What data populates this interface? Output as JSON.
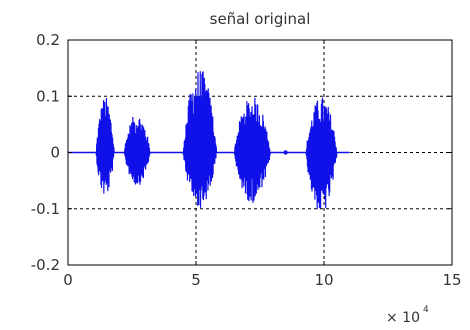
{
  "chart_data": {
    "type": "line",
    "title": "señal original",
    "xlabel": "",
    "ylabel": "",
    "xlim": [
      0,
      15
    ],
    "ylim": [
      -0.2,
      0.2
    ],
    "x_ticks": [
      "0",
      "5",
      "10",
      "15"
    ],
    "y_ticks": [
      "0.2",
      "0.1",
      "0",
      "-0.1",
      "-0.2"
    ],
    "x_exponent": {
      "base": "× 10",
      "power": "4"
    },
    "grid": true,
    "series_color": "#1010e8",
    "bursts": [
      {
        "start": 1.1,
        "end": 1.8,
        "peak_pos": 0.1,
        "peak_neg": -0.08
      },
      {
        "start": 2.2,
        "end": 3.2,
        "peak_pos": 0.07,
        "peak_neg": -0.06
      },
      {
        "start": 4.5,
        "end": 5.8,
        "peak_pos": 0.15,
        "peak_neg": -0.1
      },
      {
        "start": 6.5,
        "end": 7.9,
        "peak_pos": 0.1,
        "peak_neg": -0.09
      },
      {
        "start": 9.3,
        "end": 10.5,
        "peak_pos": 0.1,
        "peak_neg": -0.11
      }
    ],
    "dots": [
      8.5
    ]
  }
}
